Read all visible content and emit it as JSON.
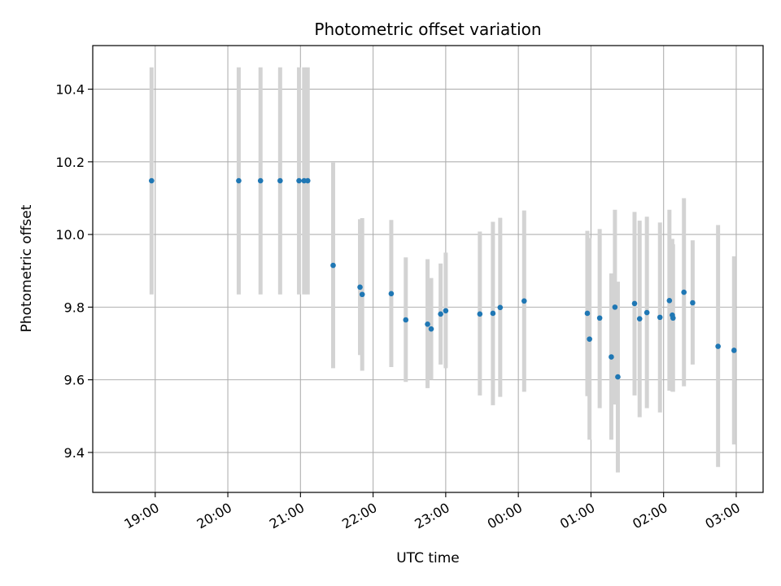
{
  "chart_data": {
    "type": "scatter",
    "title": "Photometric offset variation",
    "xlabel": "UTC time",
    "ylabel": "Photometric offset",
    "grid": true,
    "x_unit": "UTC time (hours, times after midnight continue past 24:00)",
    "xlim": [
      18.14,
      27.37
    ],
    "ylim": [
      9.29,
      10.52
    ],
    "xticks": [
      19,
      20,
      21,
      22,
      23,
      24,
      25,
      26,
      27
    ],
    "xtick_labels": [
      "19:00",
      "20:00",
      "21:00",
      "22:00",
      "23:00",
      "00:00",
      "01:00",
      "02:00",
      "03:00"
    ],
    "yticks": [
      9.4,
      9.6,
      9.8,
      10.0,
      10.2,
      10.4
    ],
    "ytick_labels": [
      "9.4",
      "9.6",
      "9.8",
      "10.0",
      "10.2",
      "10.4"
    ],
    "colors": {
      "point": "#1f77b4",
      "errorbar": "#d3d3d3",
      "grid": "#b0b0b0"
    },
    "points": [
      {
        "x": 18.95,
        "y": 10.148,
        "lo": 9.835,
        "hi": 10.46
      },
      {
        "x": 20.15,
        "y": 10.148,
        "lo": 9.835,
        "hi": 10.46
      },
      {
        "x": 20.45,
        "y": 10.148,
        "lo": 9.835,
        "hi": 10.46
      },
      {
        "x": 20.72,
        "y": 10.148,
        "lo": 9.835,
        "hi": 10.46
      },
      {
        "x": 20.98,
        "y": 10.148,
        "lo": 9.835,
        "hi": 10.46
      },
      {
        "x": 21.05,
        "y": 10.148,
        "lo": 9.835,
        "hi": 10.46
      },
      {
        "x": 21.1,
        "y": 10.148,
        "lo": 9.835,
        "hi": 10.46
      },
      {
        "x": 21.45,
        "y": 9.915,
        "lo": 9.632,
        "hi": 10.198
      },
      {
        "x": 21.82,
        "y": 9.855,
        "lo": 9.668,
        "hi": 10.042
      },
      {
        "x": 21.85,
        "y": 9.835,
        "lo": 9.625,
        "hi": 10.045
      },
      {
        "x": 22.25,
        "y": 9.837,
        "lo": 9.635,
        "hi": 10.04
      },
      {
        "x": 22.45,
        "y": 9.765,
        "lo": 9.594,
        "hi": 9.937
      },
      {
        "x": 22.75,
        "y": 9.753,
        "lo": 9.577,
        "hi": 9.932
      },
      {
        "x": 22.8,
        "y": 9.74,
        "lo": 9.6,
        "hi": 9.88
      },
      {
        "x": 22.93,
        "y": 9.781,
        "lo": 9.642,
        "hi": 9.92
      },
      {
        "x": 23.0,
        "y": 9.79,
        "lo": 9.632,
        "hi": 9.95
      },
      {
        "x": 23.47,
        "y": 9.781,
        "lo": 9.557,
        "hi": 10.008
      },
      {
        "x": 23.65,
        "y": 9.783,
        "lo": 9.53,
        "hi": 10.035
      },
      {
        "x": 23.75,
        "y": 9.799,
        "lo": 9.553,
        "hi": 10.046
      },
      {
        "x": 24.08,
        "y": 9.817,
        "lo": 9.567,
        "hi": 10.066
      },
      {
        "x": 24.95,
        "y": 9.783,
        "lo": 9.555,
        "hi": 10.01
      },
      {
        "x": 24.98,
        "y": 9.712,
        "lo": 9.435,
        "hi": 9.99
      },
      {
        "x": 25.12,
        "y": 9.77,
        "lo": 9.522,
        "hi": 10.015
      },
      {
        "x": 25.28,
        "y": 9.663,
        "lo": 9.435,
        "hi": 9.893
      },
      {
        "x": 25.33,
        "y": 9.8,
        "lo": 9.532,
        "hi": 10.068
      },
      {
        "x": 25.37,
        "y": 9.608,
        "lo": 9.345,
        "hi": 9.87
      },
      {
        "x": 25.6,
        "y": 9.81,
        "lo": 9.557,
        "hi": 10.062
      },
      {
        "x": 25.67,
        "y": 9.768,
        "lo": 9.497,
        "hi": 10.038
      },
      {
        "x": 25.77,
        "y": 9.785,
        "lo": 9.522,
        "hi": 10.049
      },
      {
        "x": 25.95,
        "y": 9.772,
        "lo": 9.51,
        "hi": 10.033
      },
      {
        "x": 26.08,
        "y": 9.818,
        "lo": 9.57,
        "hi": 10.068
      },
      {
        "x": 26.12,
        "y": 9.778,
        "lo": 9.568,
        "hi": 9.988
      },
      {
        "x": 26.13,
        "y": 9.77,
        "lo": 9.567,
        "hi": 9.973
      },
      {
        "x": 26.28,
        "y": 9.841,
        "lo": 9.582,
        "hi": 10.1
      },
      {
        "x": 26.4,
        "y": 9.812,
        "lo": 9.642,
        "hi": 9.984
      },
      {
        "x": 26.75,
        "y": 9.692,
        "lo": 9.36,
        "hi": 10.026
      },
      {
        "x": 26.97,
        "y": 9.681,
        "lo": 9.422,
        "hi": 9.94
      }
    ]
  }
}
